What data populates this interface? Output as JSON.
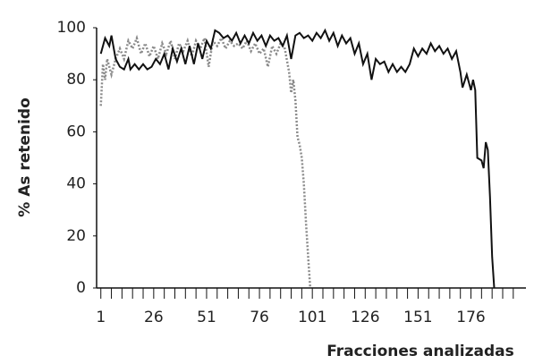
{
  "chart_data": {
    "type": "line",
    "xlabel": "Fracciones analizadas",
    "ylabel": "% As retenido",
    "xlim": [
      -1,
      202
    ],
    "ylim": [
      0,
      100
    ],
    "xticks": [
      1,
      26,
      51,
      76,
      101,
      126,
      151,
      176
    ],
    "xminorticks": [
      6,
      11,
      16,
      21,
      31,
      36,
      41,
      46,
      56,
      61,
      66,
      71,
      81,
      86,
      91,
      96,
      106,
      111,
      116,
      121,
      131,
      136,
      141,
      146,
      156,
      161,
      166,
      171,
      181,
      186,
      191,
      196
    ],
    "yticks": [
      0,
      20,
      40,
      60,
      80,
      100
    ],
    "grid": false,
    "series": [
      {
        "color": "#111111",
        "dash": false,
        "x": [
          1,
          3,
          5,
          6,
          8,
          10,
          12,
          14,
          15,
          17,
          19,
          21,
          23,
          25,
          27,
          29,
          31,
          33,
          35,
          37,
          39,
          41,
          43,
          45,
          47,
          49,
          51,
          53,
          55,
          57,
          59,
          61,
          63,
          65,
          67,
          69,
          71,
          73,
          75,
          77,
          79,
          81,
          83,
          85,
          87,
          89,
          91,
          93,
          95,
          97,
          99,
          101,
          103,
          105,
          107,
          109,
          111,
          113,
          115,
          117,
          119,
          121,
          123,
          125,
          127,
          129,
          131,
          133,
          135,
          137,
          139,
          141,
          143,
          145,
          147,
          149,
          151,
          153,
          155,
          157,
          159,
          161,
          163,
          165,
          167,
          169,
          171,
          172,
          174,
          176,
          177,
          178,
          179,
          181,
          182,
          183,
          184,
          185,
          186,
          187
        ],
        "values": [
          90,
          96,
          93,
          97,
          88,
          85,
          84,
          88,
          84,
          86,
          84,
          86,
          84,
          85,
          88,
          86,
          90,
          84,
          92,
          87,
          92,
          86,
          93,
          86,
          94,
          88,
          95,
          92,
          99,
          98,
          96,
          97,
          95,
          98,
          94,
          97,
          94,
          98,
          95,
          97,
          93,
          97,
          95,
          96,
          93,
          97,
          88,
          97,
          98,
          96,
          97,
          95,
          98,
          96,
          99,
          95,
          98,
          93,
          97,
          94,
          96,
          90,
          94,
          86,
          90,
          80,
          88,
          86,
          87,
          83,
          86,
          83,
          85,
          83,
          86,
          92,
          89,
          92,
          90,
          94,
          91,
          93,
          90,
          92,
          88,
          91,
          83,
          77,
          82,
          76,
          80,
          76,
          50,
          49,
          46,
          56,
          53,
          35,
          12,
          0
        ]
      },
      {
        "color": "#8a8a8a",
        "dash": true,
        "x": [
          1,
          2,
          3,
          4,
          6,
          8,
          10,
          12,
          14,
          16,
          18,
          20,
          22,
          24,
          26,
          28,
          30,
          32,
          34,
          36,
          38,
          40,
          42,
          44,
          46,
          48,
          50,
          52,
          54,
          56,
          58,
          60,
          62,
          64,
          66,
          68,
          70,
          72,
          74,
          76,
          78,
          80,
          82,
          84,
          86,
          88,
          90,
          91,
          92,
          93,
          94,
          95,
          96,
          97,
          98,
          99,
          100
        ],
        "values": [
          70,
          86,
          80,
          88,
          82,
          88,
          92,
          88,
          95,
          92,
          96,
          90,
          94,
          89,
          93,
          88,
          94,
          90,
          95,
          88,
          94,
          91,
          95,
          89,
          95,
          92,
          96,
          85,
          95,
          93,
          96,
          92,
          95,
          93,
          94,
          92,
          95,
          91,
          94,
          90,
          92,
          85,
          93,
          90,
          94,
          92,
          83,
          75,
          80,
          72,
          58,
          55,
          50,
          40,
          25,
          12,
          0
        ]
      }
    ]
  }
}
